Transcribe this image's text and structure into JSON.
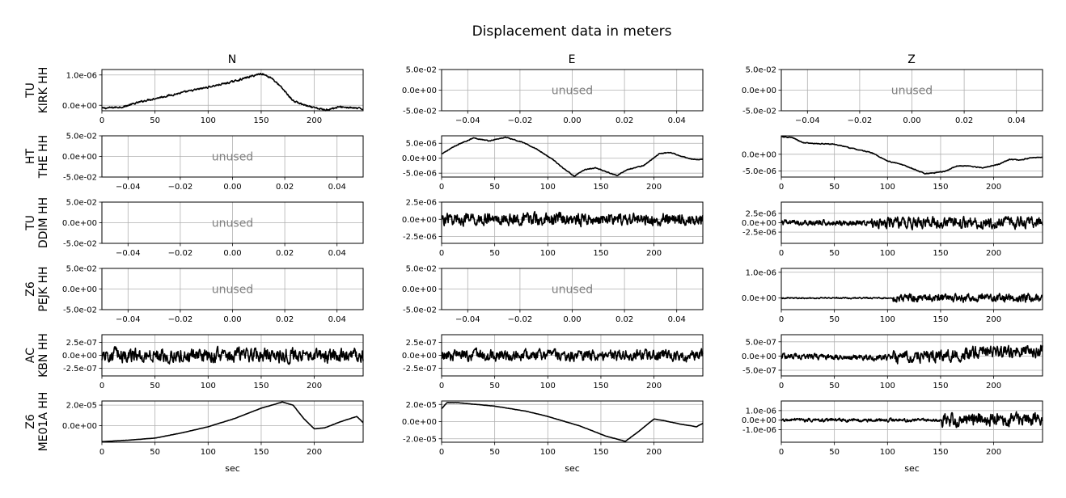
{
  "title": "Displacement data in meters",
  "columns": [
    "N",
    "E",
    "Z"
  ],
  "rows": [
    {
      "network": "TU",
      "station": "KIRK HH"
    },
    {
      "network": "HT",
      "station": "THE HH"
    },
    {
      "network": "TU",
      "station": "DDIM HH"
    },
    {
      "network": "Z6",
      "station": "PEJK HH"
    },
    {
      "network": "AC",
      "station": "KBN HH"
    },
    {
      "network": "Z6",
      "station": "ME01A HH"
    }
  ],
  "unused_label": "unused",
  "xlabel": "sec",
  "chart_data": {
    "type": "line",
    "title": "Displacement data in meters",
    "xlabel": "sec",
    "xlim": [
      0,
      246
    ],
    "panels": [
      {
        "row": 0,
        "col": 0,
        "used": true,
        "ylim": [
          -1.8e-07,
          1.18e-06
        ],
        "yticks": [
          0,
          1e-06
        ],
        "ytick_labels": [
          "0.0e+00",
          "1.0e-06"
        ],
        "xticks": [
          0,
          50,
          100,
          150,
          200
        ],
        "noise": 4.5e-08,
        "x": [
          0,
          20,
          40,
          60,
          80,
          100,
          120,
          140,
          150,
          160,
          170,
          180,
          195,
          210,
          225,
          246
        ],
        "y": [
          -1e-07,
          -5e-08,
          1.5e-07,
          3e-07,
          4.5e-07,
          6e-07,
          7.5e-07,
          9.5e-07,
          1.05e-06,
          9e-07,
          5.5e-07,
          1.5e-07,
          -5e-08,
          -1.5e-07,
          -5e-08,
          -1.2e-07
        ]
      },
      {
        "row": 0,
        "col": 1,
        "used": false
      },
      {
        "row": 0,
        "col": 2,
        "used": false
      },
      {
        "row": 1,
        "col": 0,
        "used": false
      },
      {
        "row": 1,
        "col": 1,
        "used": true,
        "ylim": [
          -6.3e-06,
          7.5e-06
        ],
        "yticks": [
          -5e-06,
          0,
          5e-06
        ],
        "ytick_labels": [
          "-5.0e-06",
          "0.0e+00",
          "5.0e-06"
        ],
        "xticks": [
          0,
          50,
          100,
          150,
          200
        ],
        "noise": 2e-07,
        "x": [
          0,
          15,
          30,
          45,
          60,
          75,
          90,
          105,
          115,
          125,
          135,
          145,
          155,
          165,
          175,
          190,
          205,
          215,
          225,
          235,
          246
        ],
        "y": [
          1.5e-06,
          4.5e-06,
          6.8e-06,
          5.8e-06,
          7e-06,
          5.5e-06,
          3e-06,
          -5e-07,
          -3.5e-06,
          -6e-06,
          -3.8e-06,
          -3.2e-06,
          -4.5e-06,
          -5.8e-06,
          -3.8e-06,
          -2.5e-06,
          1.5e-06,
          2e-06,
          8e-07,
          -3e-07,
          -5e-07
        ]
      },
      {
        "row": 1,
        "col": 2,
        "used": true,
        "ylim": [
          -6.8e-06,
          5.5e-06
        ],
        "yticks": [
          -5e-06,
          0
        ],
        "ytick_labels": [
          "-5.0e-06",
          "0.0e+00"
        ],
        "xticks": [
          0,
          50,
          100,
          150,
          200
        ],
        "noise": 2e-07,
        "x": [
          0,
          10,
          20,
          30,
          50,
          70,
          85,
          100,
          115,
          125,
          135,
          145,
          155,
          165,
          175,
          190,
          205,
          215,
          225,
          235,
          246
        ],
        "y": [
          5.2e-06,
          5e-06,
          3.5e-06,
          3.2e-06,
          3e-06,
          1.5e-06,
          5e-07,
          -2e-06,
          -3.2e-06,
          -4.5e-06,
          -5.8e-06,
          -5.5e-06,
          -5e-06,
          -3.5e-06,
          -3.5e-06,
          -4e-06,
          -3e-06,
          -1.5e-06,
          -1.8e-06,
          -1e-06,
          -1e-06
        ]
      },
      {
        "row": 2,
        "col": 0,
        "used": false
      },
      {
        "row": 2,
        "col": 1,
        "used": true,
        "ylim": [
          -3.5e-06,
          2.5e-06
        ],
        "yticks": [
          -2.5e-06,
          0,
          2.5e-06
        ],
        "ytick_labels": [
          "-2.5e-06",
          "0.0e+00",
          "2.5e-06"
        ],
        "xticks": [
          0,
          50,
          100,
          150,
          200
        ],
        "noise": 1.3e-06,
        "x": [
          0,
          246
        ],
        "y": [
          0,
          0
        ]
      },
      {
        "row": 2,
        "col": 2,
        "used": true,
        "ylim": [
          -5.5e-06,
          5.5e-06
        ],
        "yticks": [
          -2.5e-06,
          0,
          2.5e-06
        ],
        "ytick_labels": [
          "-2.5e-06",
          "0.0e+00",
          "2.5e-06"
        ],
        "xticks": [
          0,
          50,
          100,
          150,
          200
        ],
        "noise": 1.1e-06,
        "noise_boost_after": 85,
        "noise_boost": 2.0,
        "x": [
          0,
          246
        ],
        "y": [
          0,
          0
        ]
      },
      {
        "row": 3,
        "col": 0,
        "used": false
      },
      {
        "row": 3,
        "col": 1,
        "used": false
      },
      {
        "row": 3,
        "col": 2,
        "used": true,
        "ylim": [
          -4.5e-07,
          1.15e-06
        ],
        "yticks": [
          0,
          1e-06
        ],
        "ytick_labels": [
          "0.0e+00",
          "1.0e-06"
        ],
        "xticks": [
          0,
          50,
          100,
          150,
          200
        ],
        "noise": 4e-08,
        "noise_boost_after": 105,
        "noise_boost": 6.0,
        "x": [
          0,
          246
        ],
        "y": [
          0,
          0
        ]
      },
      {
        "row": 4,
        "col": 0,
        "used": true,
        "ylim": [
          -4e-07,
          4e-07
        ],
        "yticks": [
          -2.5e-07,
          0,
          2.5e-07
        ],
        "ytick_labels": [
          "-2.5e-07",
          "0.0e+00",
          "2.5e-07"
        ],
        "xticks": [
          0,
          50,
          100,
          150,
          200
        ],
        "noise": 2e-07,
        "x": [
          0,
          246
        ],
        "y": [
          0,
          0
        ]
      },
      {
        "row": 4,
        "col": 1,
        "used": true,
        "ylim": [
          -4e-07,
          4e-07
        ],
        "yticks": [
          -2.5e-07,
          0,
          2.5e-07
        ],
        "ytick_labels": [
          "-2.5e-07",
          "0.0e+00",
          "2.5e-07"
        ],
        "xticks": [
          0,
          50,
          100,
          150,
          200
        ],
        "noise": 1.6e-07,
        "x": [
          0,
          246
        ],
        "y": [
          0,
          0
        ]
      },
      {
        "row": 4,
        "col": 2,
        "used": true,
        "ylim": [
          -7e-07,
          7.5e-07
        ],
        "yticks": [
          -5e-07,
          0,
          5e-07
        ],
        "ytick_labels": [
          "-5.0e-07",
          "0.0e+00",
          "5.0e-07"
        ],
        "xticks": [
          0,
          50,
          100,
          150,
          200
        ],
        "noise": 1.5e-07,
        "noise_boost_after": 105,
        "noise_boost": 2.2,
        "x": [
          0,
          100,
          140,
          200,
          246
        ],
        "y": [
          0,
          -5e-08,
          0,
          1.5e-07,
          2e-07
        ]
      },
      {
        "row": 5,
        "col": 0,
        "used": true,
        "ylim": [
          -1.6e-05,
          2.4e-05
        ],
        "yticks": [
          0,
          2e-05
        ],
        "ytick_labels": [
          "0.0e+00",
          "2.0e-05"
        ],
        "xticks": [
          0,
          50,
          100,
          150,
          200
        ],
        "noise": 1.5e-07,
        "x": [
          0,
          25,
          50,
          75,
          100,
          125,
          150,
          170,
          180,
          190,
          200,
          210,
          225,
          240,
          246
        ],
        "y": [
          -1.55e-05,
          -1.4e-05,
          -1.2e-05,
          -7e-06,
          -1e-06,
          7e-06,
          1.7e-05,
          2.3e-05,
          2e-05,
          7e-06,
          -3e-06,
          -2e-06,
          4e-06,
          9e-06,
          3e-06
        ]
      },
      {
        "row": 5,
        "col": 1,
        "used": true,
        "ylim": [
          -2.4e-05,
          2.4e-05
        ],
        "yticks": [
          -2e-05,
          0,
          2e-05
        ],
        "ytick_labels": [
          "-2.0e-05",
          "0.0e+00",
          "2.0e-05"
        ],
        "xticks": [
          0,
          50,
          100,
          150,
          200
        ],
        "noise": 2e-07,
        "x": [
          0,
          5,
          15,
          50,
          80,
          100,
          130,
          155,
          173,
          185,
          200,
          210,
          225,
          240,
          246
        ],
        "y": [
          1.5e-05,
          2.2e-05,
          2.2e-05,
          1.8e-05,
          1.2e-05,
          6e-06,
          -5e-06,
          -1.7e-05,
          -2.3e-05,
          -1.2e-05,
          3e-06,
          1e-06,
          -3e-06,
          -6e-06,
          -2e-06
        ]
      },
      {
        "row": 5,
        "col": 2,
        "used": true,
        "ylim": [
          -2.3e-06,
          2e-06
        ],
        "yticks": [
          -1e-06,
          0,
          1e-06
        ],
        "ytick_labels": [
          "-1.0e-06",
          "0.0e+00",
          "1.0e-06"
        ],
        "xticks": [
          0,
          50,
          100,
          150,
          200
        ],
        "noise": 2.5e-07,
        "noise_boost_after": 150,
        "noise_boost": 4.0,
        "x": [
          0,
          246
        ],
        "y": [
          0,
          0
        ]
      }
    ]
  }
}
